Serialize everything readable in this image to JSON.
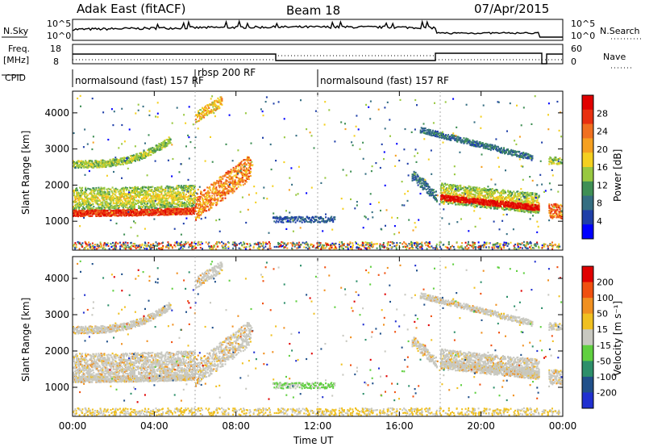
{
  "header": {
    "title": "Adak East (fitACF)",
    "beam": "Beam 18",
    "date": "07/Apr/2015"
  },
  "labels": {
    "nsky": "N.Sky",
    "nsearch": "N.Search",
    "freq": "Freq.",
    "mhz": "[MHz]",
    "cpid": "CPID",
    "nave": "Nave",
    "nsky_tick_hi": "10^5",
    "nsky_tick_lo": "10^0",
    "freq_tick_hi": "18",
    "freq_tick_lo": "8",
    "nave_tick_hi": "60",
    "nave_tick_lo": "0"
  },
  "cpid_segments": [
    {
      "label": "normalsound (fast) 157 RF",
      "start": 0,
      "end": 6
    },
    {
      "label": "rbsp 200 RF",
      "start": 6,
      "end": 12
    },
    {
      "label": "normalsound (fast) 157 RF",
      "start": 12,
      "end": 24
    }
  ],
  "chart_data": [
    {
      "type": "heatmap",
      "name": "power",
      "ylabel": "Slant Range [km]",
      "xlabel": "Time UT",
      "xlim": [
        0,
        24
      ],
      "ylim": [
        200,
        4600
      ],
      "yticks": [
        1000,
        2000,
        3000,
        4000
      ],
      "xticks": [
        "00:00",
        "04:00",
        "08:00",
        "12:00",
        "16:00",
        "20:00",
        "00:00"
      ],
      "colorbar": {
        "label": "Power [dB]",
        "ticks": [
          "4",
          "8",
          "12",
          "16",
          "20",
          "24",
          "28"
        ],
        "colors": [
          "#0000ff",
          "#1f3fa8",
          "#356e82",
          "#3f8f55",
          "#98c840",
          "#f4d020",
          "#f5a020",
          "#f07020",
          "#e83010",
          "#e00000"
        ]
      }
    },
    {
      "type": "heatmap",
      "name": "velocity",
      "ylabel": "Slant Range [km]",
      "xlabel": "Time UT",
      "xlim": [
        0,
        24
      ],
      "ylim": [
        200,
        4600
      ],
      "yticks": [
        1000,
        2000,
        3000,
        4000
      ],
      "xticks": [
        "00:00",
        "04:00",
        "08:00",
        "12:00",
        "16:00",
        "20:00",
        "00:00"
      ],
      "colorbar": {
        "label": "Velocity [m s⁻¹]",
        "ticks": [
          "200",
          "100",
          "50",
          "15",
          "-15",
          "-50",
          "-100",
          "-200"
        ],
        "colors": [
          "#2030d0",
          "#20508a",
          "#2d8f6a",
          "#60d040",
          "#c8c8c0",
          "#f0c020",
          "#f09020",
          "#f05010",
          "#e00000"
        ]
      }
    }
  ],
  "xaxis_title": "Time UT"
}
